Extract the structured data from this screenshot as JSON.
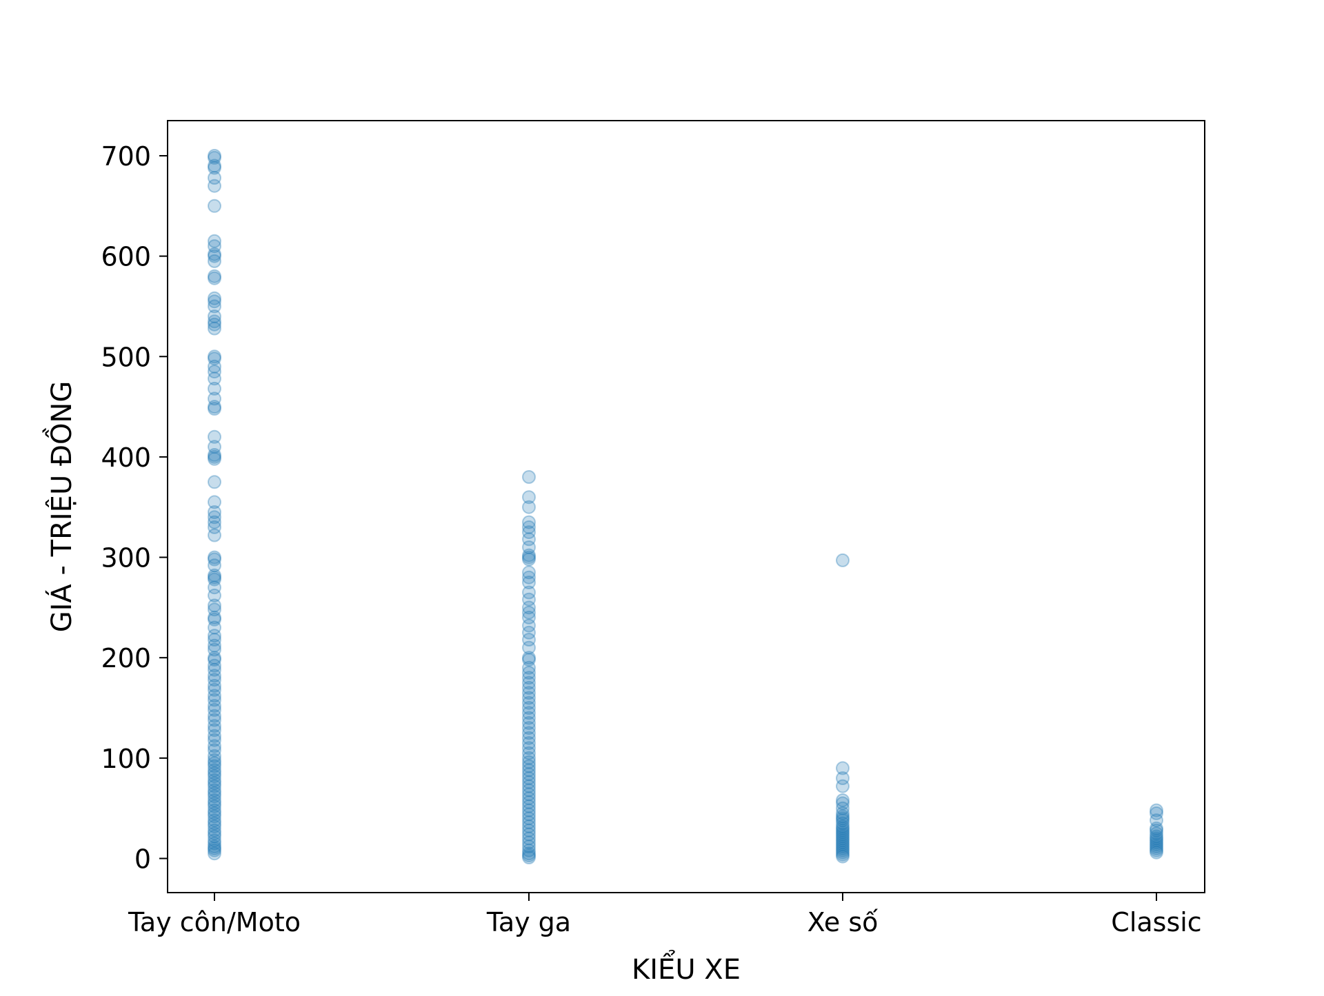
{
  "chart_data": {
    "type": "scatter",
    "title": "",
    "xlabel": "KIỂU XE",
    "ylabel": "GIÁ - TRIỆU ĐỒNG",
    "categories": [
      "Tay côn/Moto",
      "Tay ga",
      "Xe số",
      "Classic"
    ],
    "ylim": [
      -34,
      735
    ],
    "yticks": [
      0,
      100,
      200,
      300,
      400,
      500,
      600,
      700
    ],
    "grid": false,
    "marker_color": "#1f77b4",
    "marker_alpha": 0.25,
    "series": [
      {
        "category": "Tay côn/Moto",
        "values": [
          700,
          698,
          690,
          688,
          678,
          670,
          650,
          615,
          610,
          602,
          600,
          595,
          580,
          578,
          558,
          555,
          550,
          540,
          535,
          532,
          528,
          500,
          498,
          490,
          485,
          478,
          468,
          458,
          450,
          448,
          420,
          410,
          402,
          400,
          398,
          375,
          355,
          345,
          340,
          335,
          330,
          322,
          300,
          298,
          292,
          282,
          280,
          278,
          270,
          262,
          252,
          248,
          240,
          238,
          230,
          222,
          218,
          212,
          208,
          200,
          198,
          192,
          188,
          182,
          178,
          172,
          168,
          162,
          158,
          152,
          148,
          142,
          138,
          132,
          128,
          122,
          118,
          112,
          108,
          102,
          98,
          95,
          92,
          88,
          85,
          82,
          78,
          75,
          72,
          68,
          65,
          62,
          58,
          55,
          52,
          48,
          45,
          42,
          38,
          35,
          32,
          28,
          25,
          22,
          18,
          15,
          12,
          10,
          8,
          5
        ]
      },
      {
        "category": "Tay ga",
        "values": [
          380,
          360,
          350,
          335,
          330,
          325,
          318,
          310,
          302,
          300,
          298,
          285,
          280,
          275,
          265,
          258,
          250,
          245,
          240,
          232,
          225,
          218,
          210,
          200,
          198,
          190,
          185,
          180,
          175,
          170,
          165,
          160,
          155,
          150,
          145,
          140,
          135,
          130,
          125,
          120,
          115,
          110,
          105,
          100,
          96,
          92,
          88,
          84,
          80,
          76,
          72,
          68,
          64,
          60,
          56,
          52,
          48,
          44,
          40,
          36,
          32,
          28,
          24,
          20,
          16,
          12,
          8,
          5,
          3,
          1
        ]
      },
      {
        "category": "Xe số",
        "values": [
          297,
          90,
          80,
          72,
          58,
          55,
          50,
          45,
          42,
          40,
          38,
          35,
          32,
          30,
          28,
          26,
          24,
          22,
          20,
          18,
          16,
          14,
          12,
          10,
          8,
          6,
          4,
          2
        ]
      },
      {
        "category": "Classic",
        "values": [
          48,
          45,
          38,
          30,
          28,
          25,
          22,
          20,
          18,
          16,
          14,
          12,
          10,
          8,
          6
        ]
      }
    ]
  }
}
